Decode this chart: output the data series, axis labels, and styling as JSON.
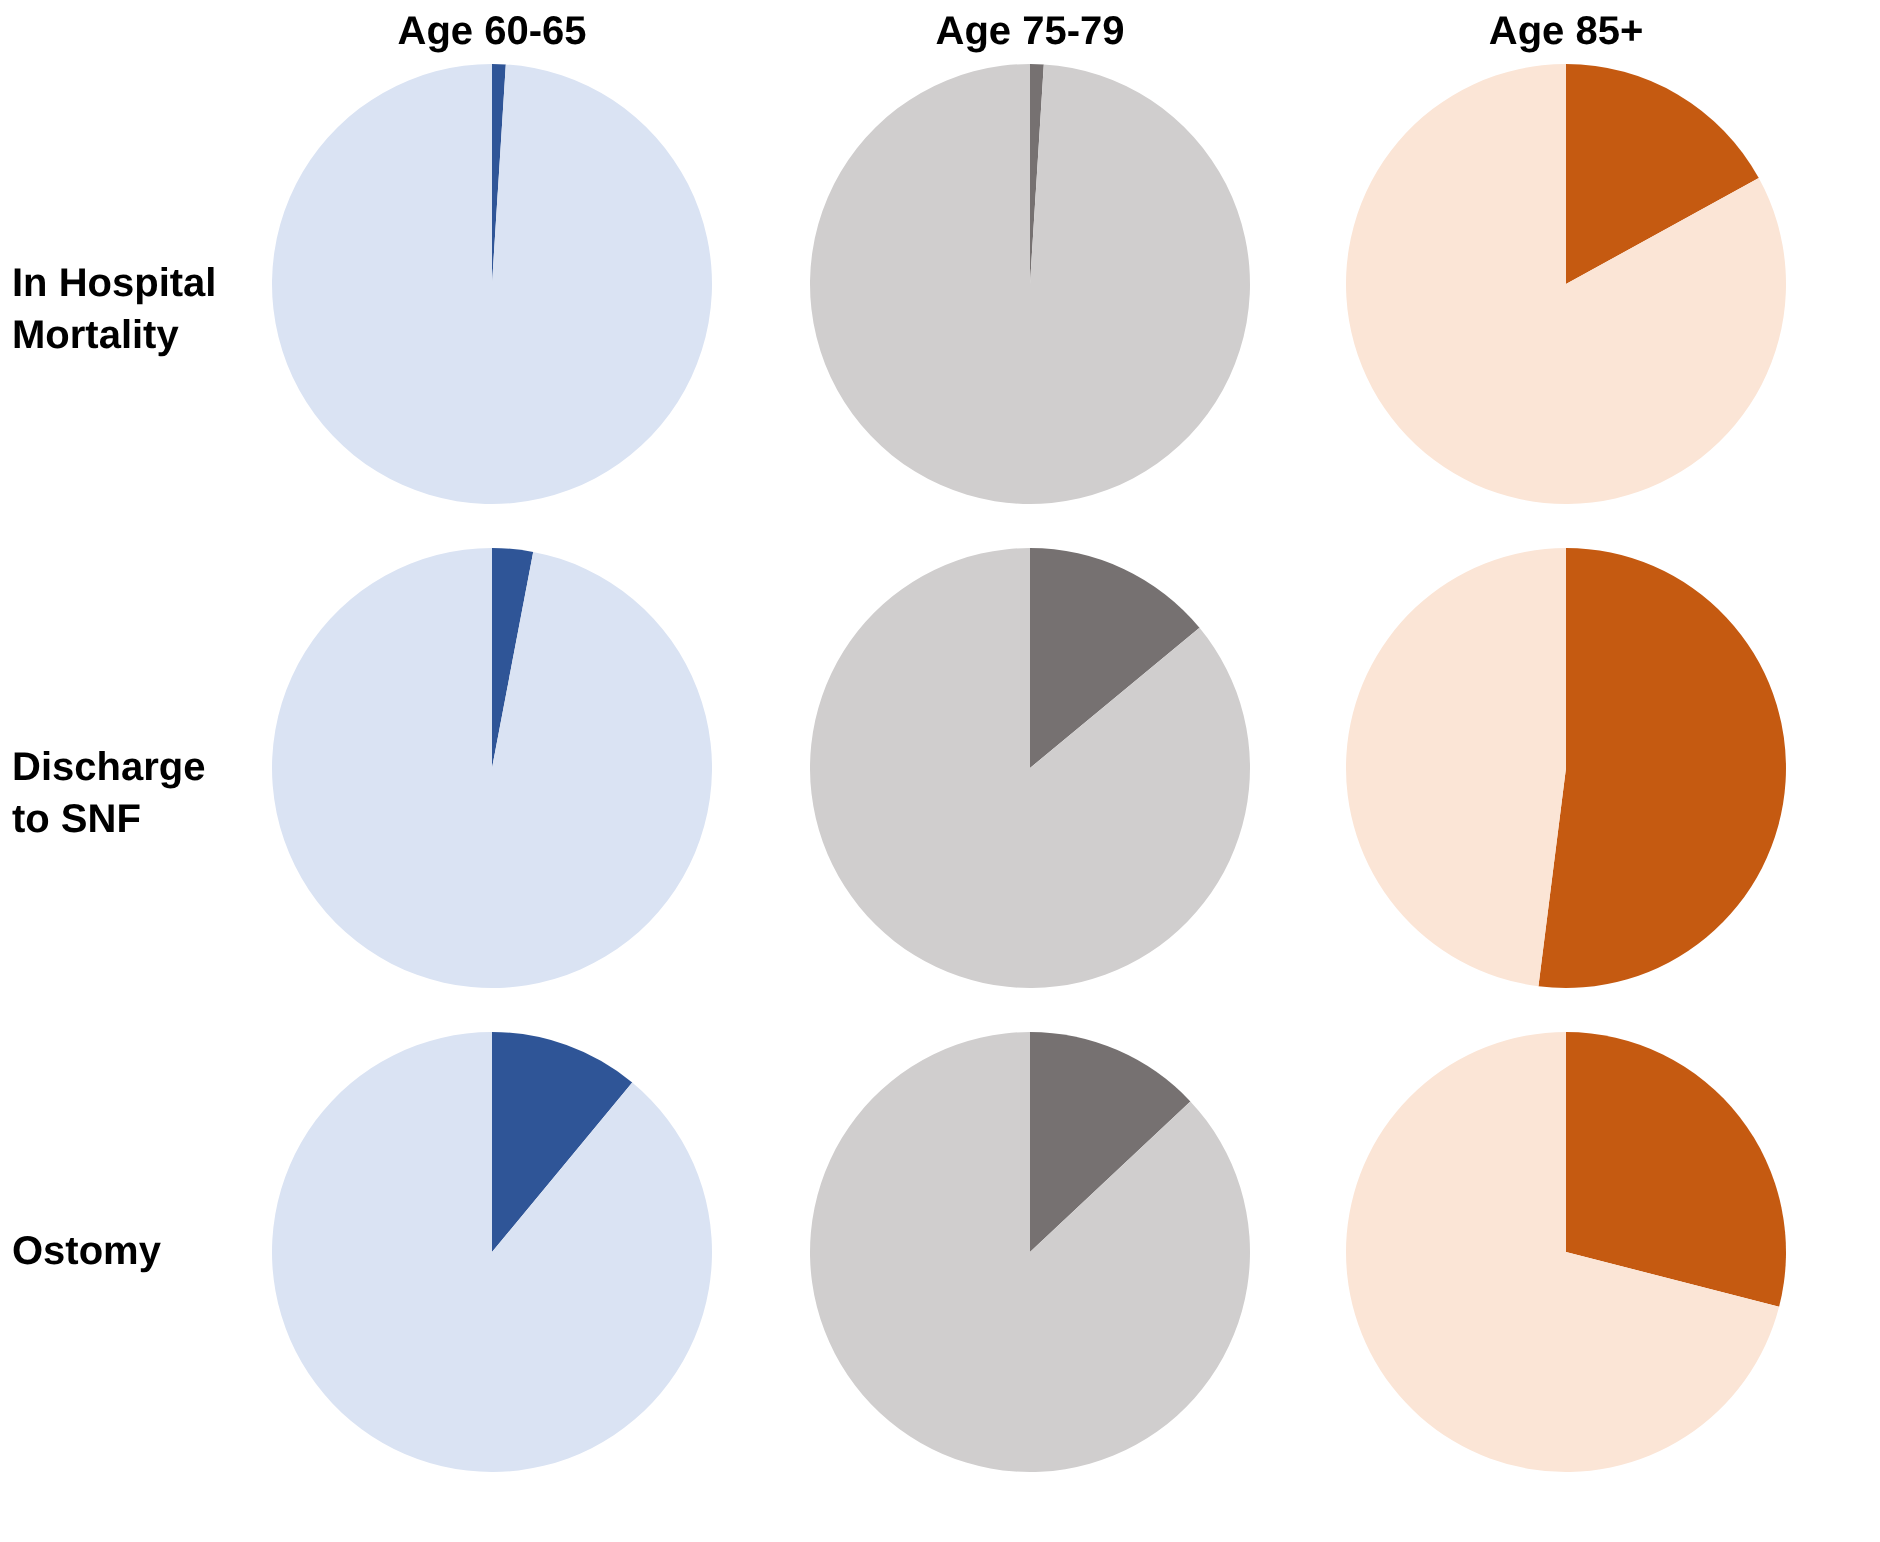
{
  "chart_data": [
    {
      "type": "pie",
      "title": "Age 60-65",
      "ylabel": "In Hospital Mortality",
      "categories": [
        null,
        null
      ],
      "values": [
        1,
        99
      ],
      "colors": [
        "#2f5597",
        "#dae3f3"
      ]
    },
    {
      "type": "pie",
      "title": "Age 75-79",
      "categories": [
        null,
        null
      ],
      "values": [
        1,
        99
      ],
      "colors": [
        "#767171",
        "#d0cece"
      ]
    },
    {
      "type": "pie",
      "title": "Age 85+",
      "categories": [
        null,
        null
      ],
      "values": [
        17,
        83
      ],
      "colors": [
        "#c55a11",
        "#fbe5d6"
      ]
    },
    {
      "type": "pie",
      "ylabel": "Discharge to SNF",
      "categories": [
        null,
        null
      ],
      "values": [
        3,
        97
      ],
      "colors": [
        "#2f5597",
        "#dae3f3"
      ]
    },
    {
      "type": "pie",
      "categories": [
        null,
        null
      ],
      "values": [
        14,
        86
      ],
      "colors": [
        "#767171",
        "#d0cece"
      ]
    },
    {
      "type": "pie",
      "categories": [
        null,
        null
      ],
      "values": [
        52,
        48
      ],
      "colors": [
        "#c55a11",
        "#fbe5d6"
      ]
    },
    {
      "type": "pie",
      "ylabel": "Ostomy",
      "categories": [
        null,
        null
      ],
      "values": [
        11,
        89
      ],
      "colors": [
        "#2f5597",
        "#dae3f3"
      ]
    },
    {
      "type": "pie",
      "categories": [
        null,
        null
      ],
      "values": [
        13,
        87
      ],
      "colors": [
        "#767171",
        "#d0cece"
      ]
    },
    {
      "type": "pie",
      "categories": [
        null,
        null
      ],
      "values": [
        29,
        71
      ],
      "colors": [
        "#c55a11",
        "#fbe5d6"
      ]
    }
  ]
}
